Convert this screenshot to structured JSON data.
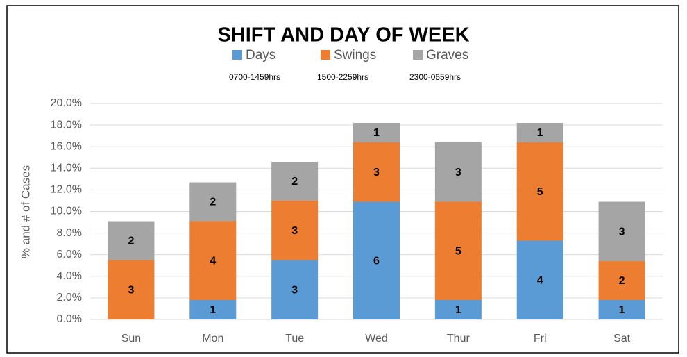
{
  "chart_data": {
    "type": "stacked_bar",
    "title": "SHIFT AND DAY OF WEEK",
    "y_label": "% and # of Cases",
    "categories": [
      "Sun",
      "Mon",
      "Tue",
      "Wed",
      "Thur",
      "Fri",
      "Sat"
    ],
    "series": [
      {
        "name": "Days",
        "hours": "0700-1459hrs",
        "color": "#5b9bd5",
        "values": [
          0,
          1.8,
          5.5,
          10.9,
          1.8,
          7.3,
          1.8
        ],
        "counts": [
          null,
          1,
          3,
          6,
          1,
          4,
          1
        ]
      },
      {
        "name": "Swings",
        "hours": "1500-2259hrs",
        "color": "#ed7d31",
        "values": [
          5.5,
          7.3,
          5.5,
          5.5,
          9.1,
          9.1,
          3.6
        ],
        "counts": [
          3,
          4,
          3,
          3,
          5,
          5,
          2
        ]
      },
      {
        "name": "Graves",
        "hours": "2300-0659hrs",
        "color": "#a5a5a5",
        "values": [
          3.6,
          3.6,
          3.6,
          1.8,
          5.5,
          1.8,
          5.5
        ],
        "counts": [
          2,
          2,
          2,
          1,
          3,
          1,
          3
        ]
      }
    ],
    "ylim": [
      0,
      20
    ],
    "yticks": [
      {
        "value": 0,
        "label": "0.0%"
      },
      {
        "value": 2,
        "label": "2.0%"
      },
      {
        "value": 4,
        "label": "4.0%"
      },
      {
        "value": 6,
        "label": "6.0%"
      },
      {
        "value": 8,
        "label": "8.0%"
      },
      {
        "value": 10,
        "label": "10.0%"
      },
      {
        "value": 12,
        "label": "12.0%"
      },
      {
        "value": 14,
        "label": "14.0%"
      },
      {
        "value": 16,
        "label": "16.0%"
      },
      {
        "value": 18,
        "label": "18.0%"
      },
      {
        "value": 20,
        "label": "20.0%"
      }
    ],
    "grid": true
  }
}
